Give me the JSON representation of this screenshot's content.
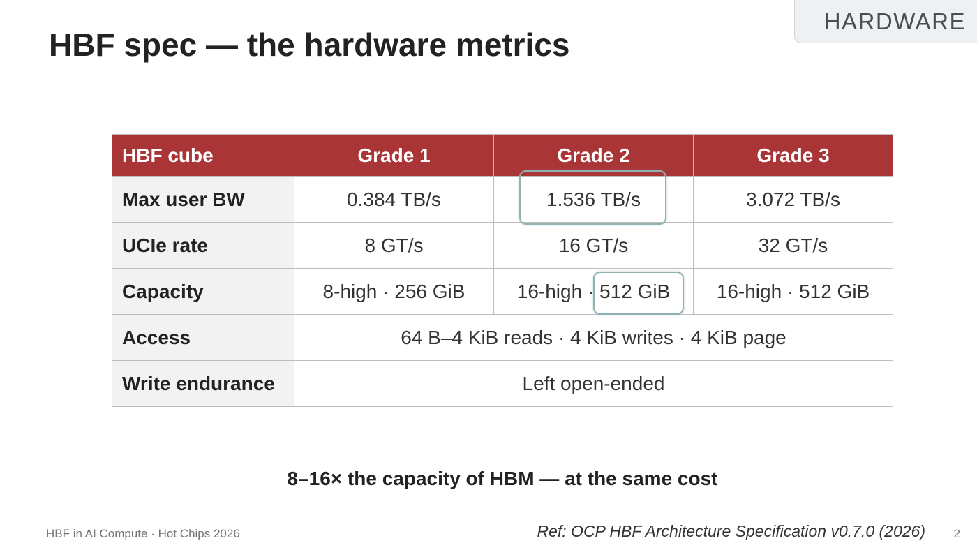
{
  "section_tag": "HARDWARE",
  "title": "HBF spec — the hardware metrics",
  "table": {
    "corner_label": "HBF cube",
    "columns": [
      "Grade 1",
      "Grade 2",
      "Grade 3"
    ],
    "rows": [
      {
        "label": "Max user BW",
        "cells": [
          "0.384 TB/s",
          "1.536 TB/s",
          "3.072 TB/s"
        ]
      },
      {
        "label": "UCIe rate",
        "cells": [
          "8 GT/s",
          "16 GT/s",
          "32 GT/s"
        ]
      },
      {
        "label": "Capacity",
        "cells": [
          "8-high · 256 GiB",
          "16-high · 512 GiB",
          "16-high · 512 GiB"
        ]
      },
      {
        "label": "Access",
        "span_value": "64 B–4 KiB reads · 4 KiB writes · 4 KiB page"
      },
      {
        "label": "Write endurance",
        "span_value": "Left open-ended"
      }
    ],
    "header_color": "#a93537",
    "highlight_color": "#8fb2b3"
  },
  "tagline": "8–16× the capacity of HBM — at the same cost",
  "footer": {
    "left": "HBF in AI Compute · Hot Chips 2026",
    "reference": "Ref: OCP HBF Architecture Specification v0.7.0 (2026)",
    "page_number": "2"
  }
}
